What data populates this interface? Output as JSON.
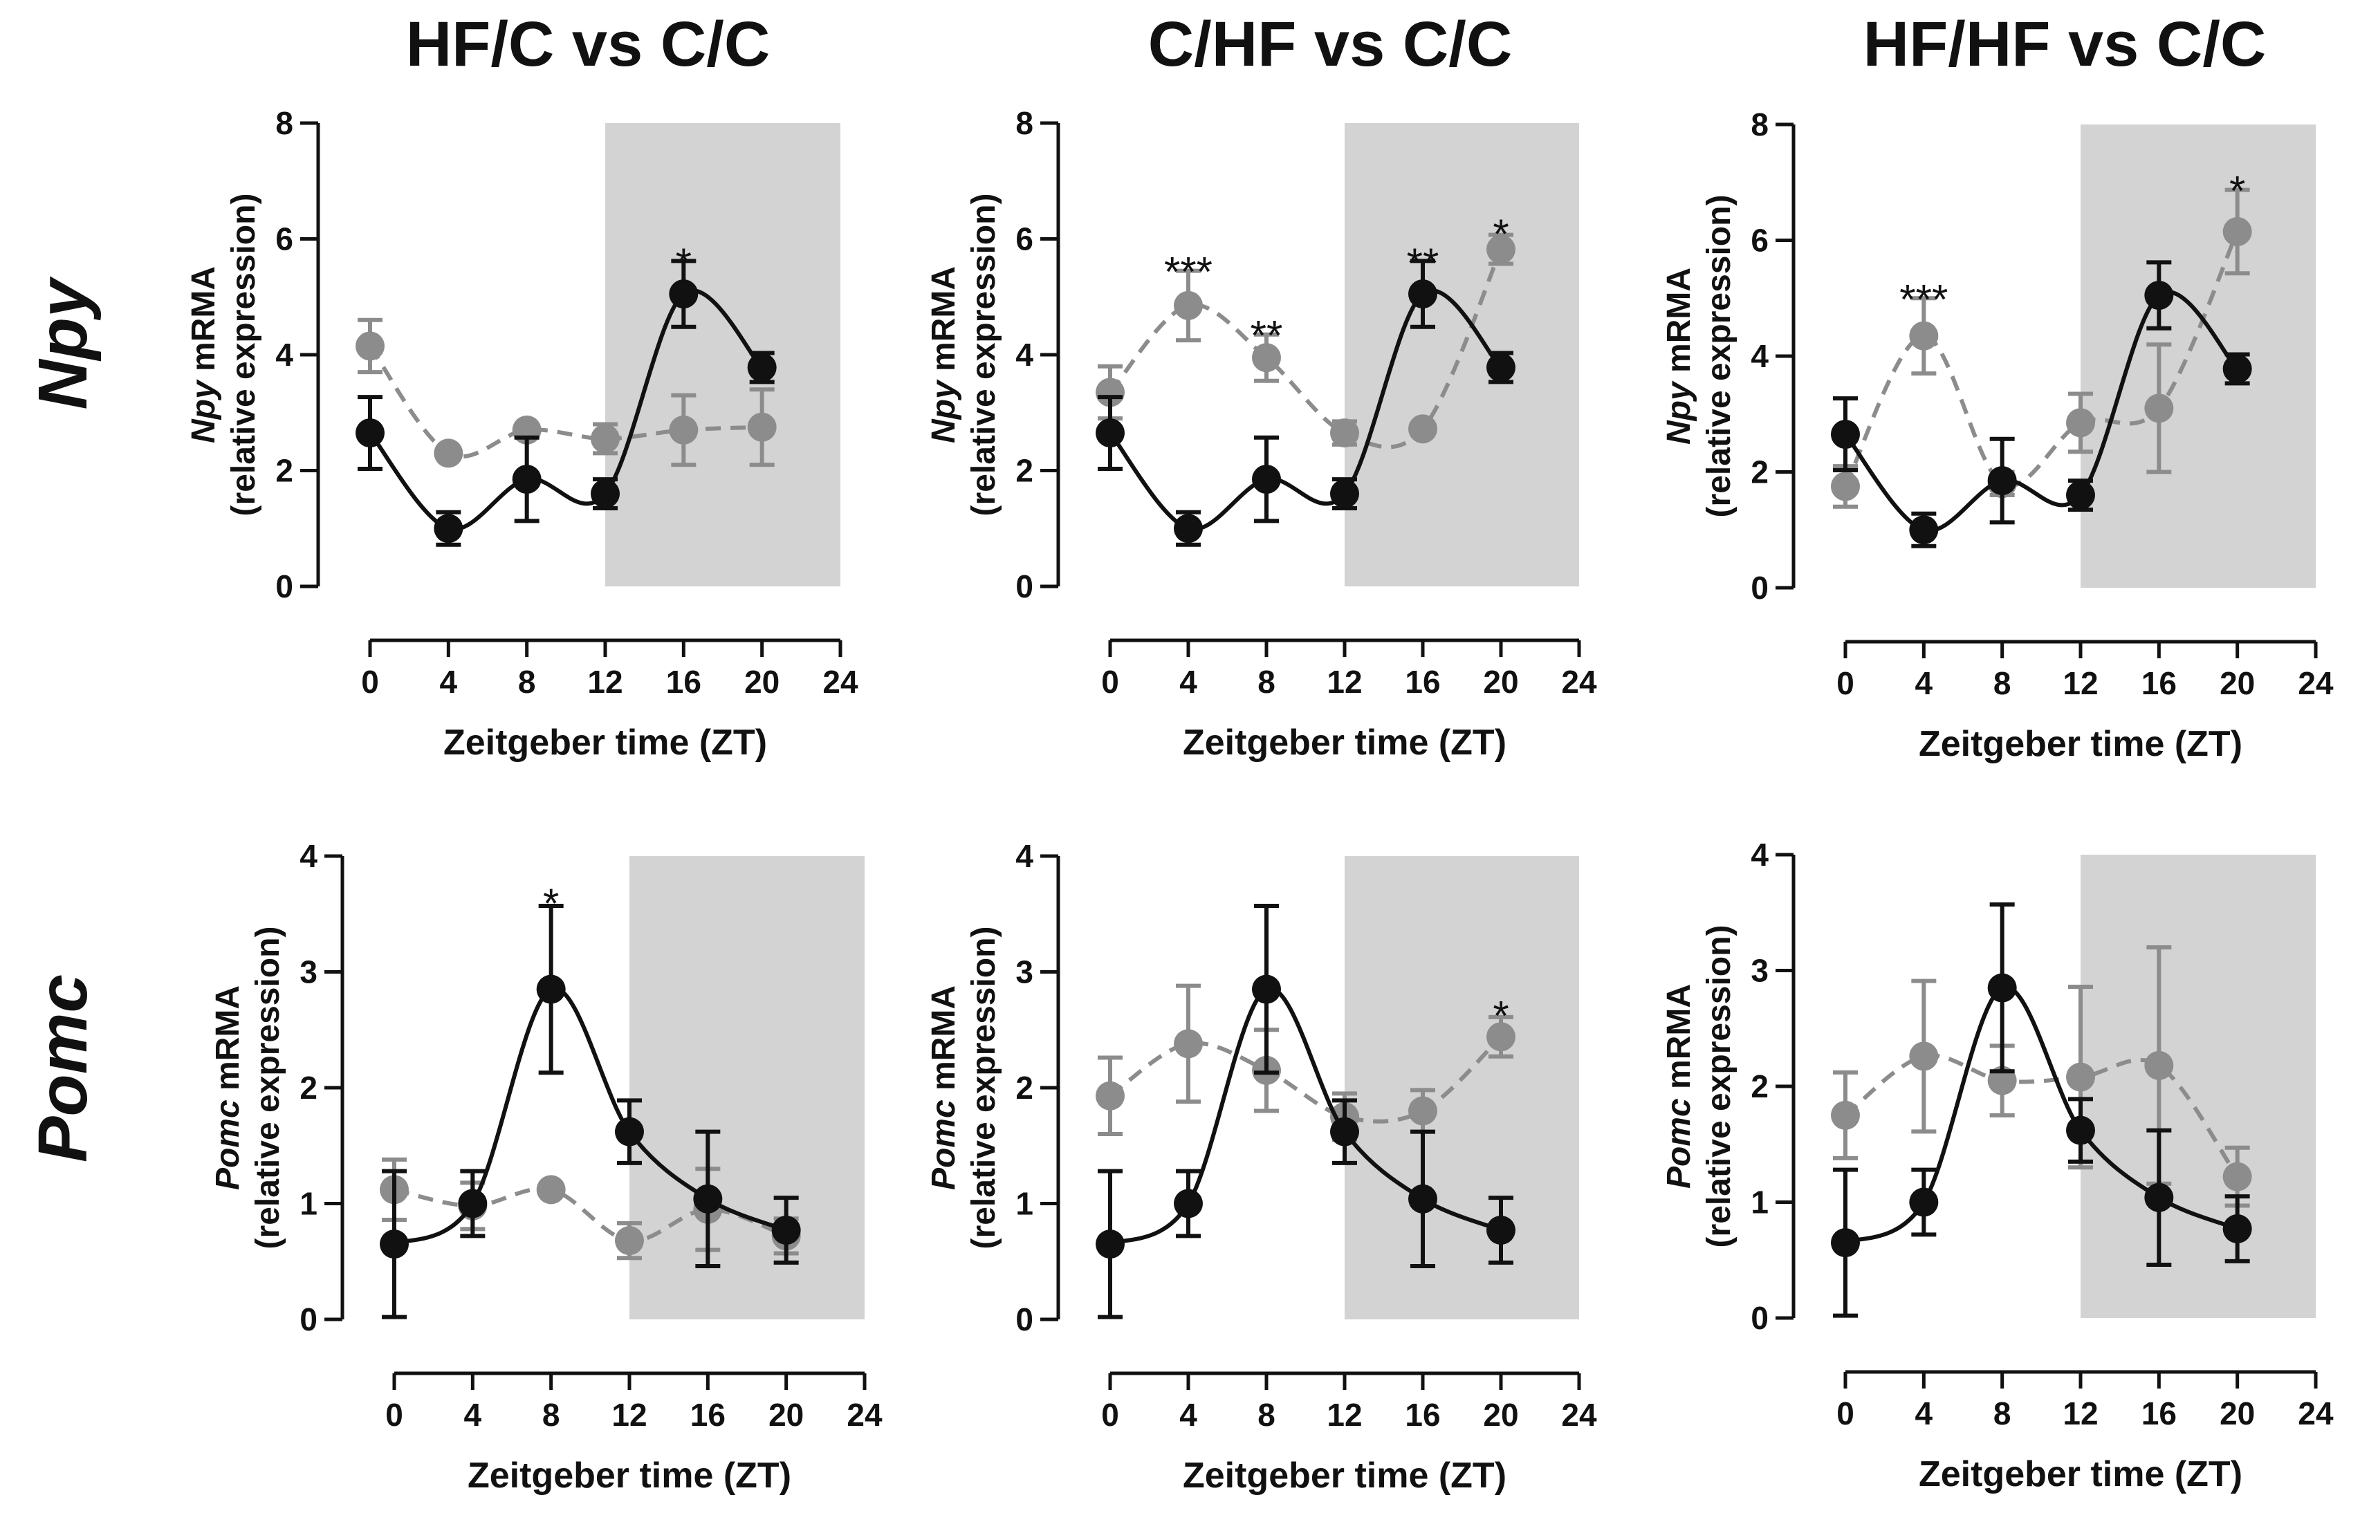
{
  "columns": [
    "HF/C vs C/C",
    "C/HF vs C/C",
    "HF/HF vs C/C"
  ],
  "rows": [
    {
      "gene": "Npy",
      "ylabel_gene": "Npy",
      "ylabel_rest": "mRMA",
      "ylabel_sub": "(relative expression)"
    },
    {
      "gene": "Pomc",
      "ylabel_gene": "Pomc",
      "ylabel_rest": "mRMA",
      "ylabel_sub": "(relative expression)"
    }
  ],
  "colors": {
    "control": "#111111",
    "treatment": "#8c8c8c",
    "dark_phase": "#d3d3d3"
  },
  "chart_data": [
    {
      "type": "line",
      "title": "HF/C vs C/C",
      "gene": "Npy",
      "xlabel": "Zeitgeber time (ZT)",
      "ylabel": "Npy mRMA (relative expression)",
      "x": [
        0,
        4,
        8,
        12,
        16,
        20
      ],
      "xlim": [
        0,
        24
      ],
      "xticks": [
        0,
        4,
        8,
        12,
        16,
        20,
        24
      ],
      "ylim": [
        0,
        8
      ],
      "yticks": [
        0,
        2,
        4,
        6,
        8
      ],
      "dark_phase": [
        12,
        24
      ],
      "series": [
        {
          "name": "C/C",
          "style": "solid",
          "values": [
            2.65,
            1.0,
            1.85,
            1.6,
            5.05,
            3.78
          ],
          "errors": [
            0.62,
            0.28,
            0.72,
            0.25,
            0.57,
            0.25
          ]
        },
        {
          "name": "HF/C",
          "style": "dashed",
          "values": [
            4.15,
            2.3,
            2.7,
            2.55,
            2.7,
            2.75
          ],
          "errors": [
            0.45,
            0.05,
            0.05,
            0.25,
            0.6,
            0.65
          ]
        }
      ],
      "annotations": [
        {
          "x": 16,
          "y": 5.6,
          "text": "*"
        }
      ]
    },
    {
      "type": "line",
      "title": "C/HF vs C/C",
      "gene": "Npy",
      "xlabel": "Zeitgeber time (ZT)",
      "ylabel": "Npy mRMA (relative expression)",
      "x": [
        0,
        4,
        8,
        12,
        16,
        20
      ],
      "xlim": [
        0,
        24
      ],
      "xticks": [
        0,
        4,
        8,
        12,
        16,
        20,
        24
      ],
      "ylim": [
        0,
        8
      ],
      "yticks": [
        0,
        2,
        4,
        6,
        8
      ],
      "dark_phase": [
        12,
        24
      ],
      "series": [
        {
          "name": "C/C",
          "style": "solid",
          "values": [
            2.65,
            1.0,
            1.85,
            1.6,
            5.05,
            3.78
          ],
          "errors": [
            0.62,
            0.28,
            0.72,
            0.25,
            0.57,
            0.25
          ]
        },
        {
          "name": "C/HF",
          "style": "dashed",
          "values": [
            3.35,
            4.85,
            3.95,
            2.65,
            2.72,
            5.82
          ],
          "errors": [
            0.45,
            0.6,
            0.4,
            0.2,
            0.05,
            0.25
          ]
        }
      ],
      "annotations": [
        {
          "x": 4,
          "y": 5.45,
          "text": "***"
        },
        {
          "x": 8,
          "y": 4.35,
          "text": "**"
        },
        {
          "x": 16,
          "y": 5.6,
          "text": "**"
        },
        {
          "x": 20,
          "y": 6.1,
          "text": "*"
        }
      ]
    },
    {
      "type": "line",
      "title": "HF/HF vs C/C",
      "gene": "Npy",
      "xlabel": "Zeitgeber time (ZT)",
      "ylabel": "Npy mRMA (relative expression)",
      "x": [
        0,
        4,
        8,
        12,
        16,
        20
      ],
      "xlim": [
        0,
        24
      ],
      "xticks": [
        0,
        4,
        8,
        12,
        16,
        20,
        24
      ],
      "ylim": [
        0,
        8
      ],
      "yticks": [
        0,
        2,
        4,
        6,
        8
      ],
      "dark_phase": [
        12,
        24
      ],
      "series": [
        {
          "name": "C/C",
          "style": "solid",
          "values": [
            2.65,
            1.0,
            1.85,
            1.6,
            5.05,
            3.78
          ],
          "errors": [
            0.62,
            0.28,
            0.72,
            0.25,
            0.57,
            0.25
          ]
        },
        {
          "name": "HF/HF",
          "style": "dashed",
          "values": [
            1.75,
            4.35,
            1.8,
            2.85,
            3.1,
            6.15
          ],
          "errors": [
            0.35,
            0.65,
            0.2,
            0.5,
            1.1,
            0.72
          ]
        }
      ],
      "annotations": [
        {
          "x": 4,
          "y": 5.0,
          "text": "***"
        },
        {
          "x": 20,
          "y": 6.87,
          "text": "*"
        }
      ]
    },
    {
      "type": "line",
      "title": "HF/C vs C/C",
      "gene": "Pomc",
      "xlabel": "Zeitgeber time (ZT)",
      "ylabel": "Pomc mRMA (relative expression)",
      "x": [
        0,
        4,
        8,
        12,
        16,
        20
      ],
      "xlim": [
        0,
        24
      ],
      "xticks": [
        0,
        4,
        8,
        12,
        16,
        20,
        24
      ],
      "ylim": [
        0,
        4
      ],
      "yticks": [
        0,
        1,
        2,
        3,
        4
      ],
      "dark_phase": [
        12,
        24
      ],
      "series": [
        {
          "name": "C/C",
          "style": "solid",
          "values": [
            0.65,
            1.0,
            2.85,
            1.62,
            1.04,
            0.77
          ],
          "errors": [
            0.63,
            0.28,
            0.72,
            0.27,
            0.58,
            0.28
          ]
        },
        {
          "name": "HF/C",
          "style": "dashed",
          "values": [
            1.12,
            0.98,
            1.12,
            0.68,
            0.95,
            0.72
          ],
          "errors": [
            0.26,
            0.2,
            0.03,
            0.15,
            0.35,
            0.15
          ]
        }
      ],
      "annotations": [
        {
          "x": 8,
          "y": 3.6,
          "text": "*"
        }
      ]
    },
    {
      "type": "line",
      "title": "C/HF vs C/C",
      "gene": "Pomc",
      "xlabel": "Zeitgeber time (ZT)",
      "ylabel": "Pomc mRMA (relative expression)",
      "x": [
        0,
        4,
        8,
        12,
        16,
        20
      ],
      "xlim": [
        0,
        24
      ],
      "xticks": [
        0,
        4,
        8,
        12,
        16,
        20,
        24
      ],
      "ylim": [
        0,
        4
      ],
      "yticks": [
        0,
        1,
        2,
        3,
        4
      ],
      "dark_phase": [
        12,
        24
      ],
      "series": [
        {
          "name": "C/C",
          "style": "solid",
          "values": [
            0.65,
            1.0,
            2.85,
            1.62,
            1.04,
            0.77
          ],
          "errors": [
            0.63,
            0.28,
            0.72,
            0.27,
            0.58,
            0.28
          ]
        },
        {
          "name": "C/HF",
          "style": "dashed",
          "values": [
            1.93,
            2.38,
            2.15,
            1.75,
            1.8,
            2.44
          ],
          "errors": [
            0.33,
            0.5,
            0.35,
            0.2,
            0.18,
            0.17
          ]
        }
      ],
      "annotations": [
        {
          "x": 20,
          "y": 2.63,
          "text": "*"
        }
      ]
    },
    {
      "type": "line",
      "title": "HF/HF vs C/C",
      "gene": "Pomc",
      "xlabel": "Zeitgeber time (ZT)",
      "ylabel": "Pomc mRMA (relative expression)",
      "x": [
        0,
        4,
        8,
        12,
        16,
        20
      ],
      "xlim": [
        0,
        24
      ],
      "xticks": [
        0,
        4,
        8,
        12,
        16,
        20,
        24
      ],
      "ylim": [
        0,
        4
      ],
      "yticks": [
        0,
        1,
        2,
        3,
        4
      ],
      "dark_phase": [
        12,
        24
      ],
      "series": [
        {
          "name": "C/C",
          "style": "solid",
          "values": [
            0.65,
            1.0,
            2.85,
            1.62,
            1.04,
            0.77
          ],
          "errors": [
            0.63,
            0.28,
            0.72,
            0.27,
            0.58,
            0.28
          ]
        },
        {
          "name": "HF/HF",
          "style": "dashed",
          "values": [
            1.75,
            2.26,
            2.05,
            2.08,
            2.18,
            1.22
          ],
          "errors": [
            0.37,
            0.65,
            0.3,
            0.78,
            1.02,
            0.25
          ]
        }
      ],
      "annotations": []
    }
  ]
}
